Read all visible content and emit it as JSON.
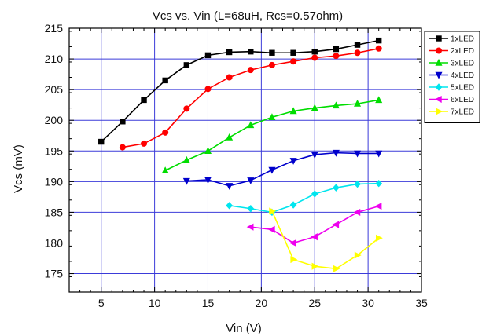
{
  "chart_data": {
    "type": "line",
    "title": "Vcs vs. Vin (L=68uH, Rcs=0.57ohm)",
    "xlabel": "Vin (V)",
    "ylabel": "Vcs (mV)",
    "xlim": [
      2,
      35
    ],
    "ylim": [
      172,
      215
    ],
    "x_ticks": [
      5,
      10,
      15,
      20,
      25,
      30,
      35
    ],
    "y_ticks": [
      175,
      180,
      185,
      190,
      195,
      200,
      205,
      210,
      215
    ],
    "grid": true,
    "legend_position": "top-right",
    "series": [
      {
        "name": "1xLED",
        "color": "#000000",
        "marker": "square",
        "x": [
          5,
          7,
          9,
          11,
          13,
          15,
          17,
          19,
          21,
          23,
          25,
          27,
          29,
          31
        ],
        "y": [
          196.5,
          199.8,
          203.3,
          206.5,
          209.0,
          210.6,
          211.1,
          211.2,
          211.0,
          211.0,
          211.2,
          211.6,
          212.3,
          213.0
        ]
      },
      {
        "name": "2xLED",
        "color": "#ff0000",
        "marker": "circle",
        "x": [
          7,
          9,
          11,
          13,
          15,
          17,
          19,
          21,
          23,
          25,
          27,
          29,
          31
        ],
        "y": [
          195.6,
          196.2,
          198.0,
          201.9,
          205.1,
          207.0,
          208.2,
          209.0,
          209.6,
          210.2,
          210.5,
          211.0,
          211.7
        ]
      },
      {
        "name": "3xLED",
        "color": "#00dd00",
        "marker": "triangle-up",
        "x": [
          11,
          13,
          15,
          17,
          19,
          21,
          23,
          25,
          27,
          29,
          31
        ],
        "y": [
          191.8,
          193.5,
          195.0,
          197.2,
          199.2,
          200.5,
          201.5,
          202.0,
          202.4,
          202.7,
          203.3
        ]
      },
      {
        "name": "4xLED",
        "color": "#0000cc",
        "marker": "triangle-down",
        "x": [
          13,
          15,
          17,
          19,
          21,
          23,
          25,
          27,
          29,
          31
        ],
        "y": [
          190.1,
          190.3,
          189.3,
          190.2,
          191.9,
          193.4,
          194.4,
          194.7,
          194.6,
          194.6
        ]
      },
      {
        "name": "5xLED",
        "color": "#00e5ee",
        "marker": "diamond",
        "x": [
          17,
          19,
          21,
          23,
          25,
          27,
          29,
          31
        ],
        "y": [
          186.1,
          185.6,
          185.0,
          186.2,
          188.0,
          189.0,
          189.6,
          189.7
        ]
      },
      {
        "name": "6xLED",
        "color": "#ee00ee",
        "marker": "triangle-left",
        "x": [
          19,
          21,
          23,
          25,
          27,
          29,
          31
        ],
        "y": [
          182.6,
          182.2,
          180.0,
          181.0,
          183.0,
          185.0,
          186.0
        ]
      },
      {
        "name": "7xLED",
        "color": "#ffff00",
        "marker": "triangle-right",
        "x": [
          21,
          23,
          25,
          27,
          29,
          31
        ],
        "y": [
          185.2,
          177.3,
          176.2,
          175.8,
          178.0,
          180.8
        ]
      }
    ]
  }
}
